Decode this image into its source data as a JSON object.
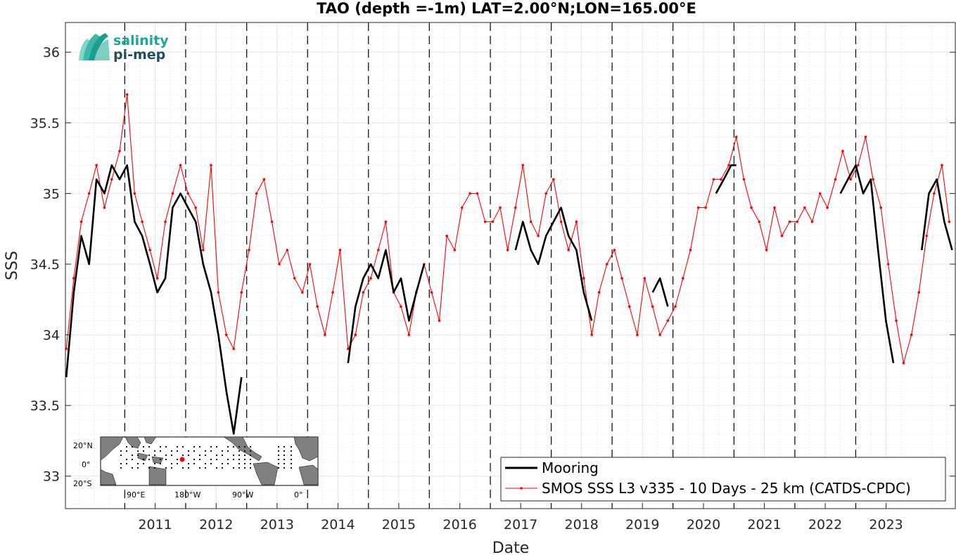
{
  "chart_data": {
    "type": "line",
    "title": "TAO (depth =-1m) LAT=2.00°N;LON=165.00°E",
    "xlabel": "Date",
    "ylabel": "SSS",
    "xlim": [
      "2010-01-10",
      "2024-08-20"
    ],
    "ylim": [
      32.77,
      36.21
    ],
    "x_ticks": [
      "2011",
      "2012",
      "2013",
      "2014",
      "2015",
      "2016",
      "2017",
      "2018",
      "2019",
      "2020",
      "2021",
      "2022",
      "2023"
    ],
    "y_ticks": [
      "33",
      "33.5",
      "34",
      "34.5",
      "35",
      "35.5",
      "36"
    ],
    "grid": "on (minor dotted)",
    "year_markers": [
      "2011-01-01",
      "2012-01-01",
      "2013-01-01",
      "2014-01-01",
      "2015-01-01",
      "2016-01-01",
      "2017-01-01",
      "2018-01-01",
      "2019-01-01",
      "2020-01-01",
      "2021-01-01",
      "2022-01-01",
      "2023-01-01"
    ],
    "legend_position": "bottom-right",
    "series": [
      {
        "name": "Mooring",
        "color": "#000000",
        "segments": [
          {
            "x": [
              "2010-01-15",
              "2010-03-01",
              "2010-04-15",
              "2010-06-01",
              "2010-07-15",
              "2010-09-01",
              "2010-10-15",
              "2010-12-01",
              "2011-01-15",
              "2011-03-01",
              "2011-04-15",
              "2011-06-01",
              "2011-07-15",
              "2011-09-01",
              "2011-10-15",
              "2011-12-01",
              "2012-01-15",
              "2012-03-01",
              "2012-04-15",
              "2012-06-01",
              "2012-07-15",
              "2012-09-01",
              "2012-10-15",
              "2012-12-01"
            ],
            "y": [
              33.7,
              34.3,
              34.7,
              34.5,
              35.1,
              35.0,
              35.2,
              35.1,
              35.2,
              34.8,
              34.7,
              34.5,
              34.3,
              34.4,
              34.9,
              35.0,
              34.9,
              34.8,
              34.5,
              34.3,
              34.0,
              33.6,
              33.3,
              33.7
            ]
          },
          {
            "x": [
              "2014-09-01",
              "2014-10-15",
              "2014-12-01",
              "2015-01-15",
              "2015-03-01",
              "2015-04-15",
              "2015-06-01",
              "2015-07-15",
              "2015-09-01",
              "2015-10-15",
              "2015-12-01"
            ],
            "y": [
              33.8,
              34.2,
              34.4,
              34.5,
              34.4,
              34.6,
              34.3,
              34.4,
              34.1,
              34.3,
              34.5
            ]
          },
          {
            "x": [
              "2017-06-01",
              "2017-07-15",
              "2017-09-01",
              "2017-10-15",
              "2017-12-01",
              "2018-01-15",
              "2018-03-01",
              "2018-04-15",
              "2018-06-01",
              "2018-07-15",
              "2018-09-01"
            ],
            "y": [
              34.6,
              34.8,
              34.6,
              34.5,
              34.7,
              34.8,
              34.9,
              34.7,
              34.6,
              34.3,
              34.1
            ]
          },
          {
            "x": [
              "2019-09-01",
              "2019-10-15",
              "2019-12-01"
            ],
            "y": [
              34.3,
              34.4,
              34.2
            ]
          },
          {
            "x": [
              "2020-09-15",
              "2020-11-01",
              "2020-12-15",
              "2021-01-15"
            ],
            "y": [
              35.0,
              35.1,
              35.2,
              35.2
            ]
          },
          {
            "x": [
              "2022-10-01",
              "2022-11-15",
              "2023-01-01",
              "2023-02-15",
              "2023-04-01",
              "2023-05-15",
              "2023-07-01",
              "2023-08-15"
            ],
            "y": [
              35.0,
              35.1,
              35.2,
              35.0,
              35.1,
              34.6,
              34.1,
              33.8
            ]
          },
          {
            "x": [
              "2024-02-01",
              "2024-03-15",
              "2024-05-01",
              "2024-06-15",
              "2024-08-01"
            ],
            "y": [
              34.6,
              35.0,
              35.1,
              34.8,
              34.6
            ]
          }
        ]
      },
      {
        "name": "SMOS SSS L3 v335 - 10 Days - 25 km (CATDS-CPDC)",
        "color": "#ff0000",
        "x": [
          "2010-01-15",
          "2010-03-01",
          "2010-04-15",
          "2010-06-01",
          "2010-07-15",
          "2010-09-01",
          "2010-10-15",
          "2010-12-01",
          "2011-01-15",
          "2011-03-01",
          "2011-04-15",
          "2011-06-01",
          "2011-07-15",
          "2011-09-01",
          "2011-10-15",
          "2011-12-01",
          "2012-01-15",
          "2012-03-01",
          "2012-04-15",
          "2012-06-01",
          "2012-07-15",
          "2012-09-01",
          "2012-10-15",
          "2012-12-01",
          "2013-01-15",
          "2013-03-01",
          "2013-04-15",
          "2013-06-01",
          "2013-07-15",
          "2013-09-01",
          "2013-10-15",
          "2013-12-01",
          "2014-01-15",
          "2014-03-01",
          "2014-04-15",
          "2014-06-01",
          "2014-07-15",
          "2014-09-01",
          "2014-10-15",
          "2014-12-01",
          "2015-01-15",
          "2015-03-01",
          "2015-04-15",
          "2015-06-01",
          "2015-07-15",
          "2015-09-01",
          "2015-10-15",
          "2015-12-01",
          "2016-01-15",
          "2016-03-01",
          "2016-04-15",
          "2016-06-01",
          "2016-07-15",
          "2016-09-01",
          "2016-10-15",
          "2016-12-01",
          "2017-01-15",
          "2017-03-01",
          "2017-04-15",
          "2017-06-01",
          "2017-07-15",
          "2017-09-01",
          "2017-10-15",
          "2017-12-01",
          "2018-01-15",
          "2018-03-01",
          "2018-04-15",
          "2018-06-01",
          "2018-07-15",
          "2018-09-01",
          "2018-10-15",
          "2018-12-01",
          "2019-01-15",
          "2019-03-01",
          "2019-04-15",
          "2019-06-01",
          "2019-07-15",
          "2019-09-01",
          "2019-10-15",
          "2019-12-01",
          "2020-01-15",
          "2020-03-01",
          "2020-04-15",
          "2020-06-01",
          "2020-07-15",
          "2020-09-01",
          "2020-10-15",
          "2020-12-01",
          "2021-01-15",
          "2021-03-01",
          "2021-04-15",
          "2021-06-01",
          "2021-07-15",
          "2021-09-01",
          "2021-10-15",
          "2021-12-01",
          "2022-01-15",
          "2022-03-01",
          "2022-04-15",
          "2022-06-01",
          "2022-07-15",
          "2022-09-01",
          "2022-10-15",
          "2022-12-01",
          "2023-01-15",
          "2023-03-01",
          "2023-04-15",
          "2023-06-01",
          "2023-07-15",
          "2023-09-01",
          "2023-10-15",
          "2023-12-01",
          "2024-01-15",
          "2024-03-01",
          "2024-04-15",
          "2024-06-01",
          "2024-07-15"
        ],
        "y": [
          33.9,
          34.4,
          34.8,
          35.0,
          35.2,
          34.9,
          35.1,
          35.3,
          35.7,
          35.0,
          34.8,
          34.6,
          34.4,
          34.8,
          35.0,
          35.2,
          35.0,
          34.9,
          34.6,
          35.2,
          34.3,
          34.0,
          33.9,
          34.3,
          34.6,
          35.0,
          35.1,
          34.8,
          34.5,
          34.6,
          34.4,
          34.3,
          34.5,
          34.2,
          34.0,
          34.3,
          34.6,
          33.9,
          34.0,
          34.3,
          34.4,
          34.6,
          34.8,
          34.3,
          34.2,
          34.0,
          34.3,
          34.5,
          34.3,
          34.1,
          34.7,
          34.6,
          34.9,
          35.0,
          35.0,
          34.8,
          34.8,
          34.9,
          34.6,
          34.9,
          35.2,
          34.8,
          34.7,
          35.0,
          35.1,
          34.8,
          34.6,
          34.8,
          34.4,
          34.0,
          34.3,
          34.5,
          34.6,
          34.4,
          34.2,
          34.0,
          34.4,
          34.2,
          34.0,
          34.1,
          34.2,
          34.4,
          34.6,
          34.9,
          34.9,
          35.1,
          35.1,
          35.2,
          35.4,
          35.1,
          34.9,
          34.8,
          34.6,
          34.9,
          34.7,
          34.8,
          34.8,
          34.9,
          34.8,
          35.0,
          34.9,
          35.1,
          35.3,
          35.1,
          35.2,
          35.4,
          35.1,
          34.9,
          34.5,
          34.1,
          33.8,
          34.0,
          34.3,
          34.7,
          35.0,
          35.2,
          34.8
        ]
      }
    ]
  },
  "logo": {
    "line1": "salinity",
    "line2": "pi-mep"
  },
  "inset_map": {
    "lat_ticks": [
      "20°N",
      "0°",
      "20°S"
    ],
    "lon_ticks": [
      "90°E",
      "180°W",
      "90°W",
      "0°"
    ],
    "mooring_lat": 2.0,
    "mooring_lon": 165.0,
    "land_color": "#808080",
    "marker_color": "#ff0000"
  },
  "legend": {
    "items": [
      {
        "label": "Mooring",
        "color": "#000000"
      },
      {
        "label": "SMOS SSS L3 v335 - 10 Days - 25 km (CATDS-CPDC)",
        "color": "#ff0000"
      }
    ]
  }
}
